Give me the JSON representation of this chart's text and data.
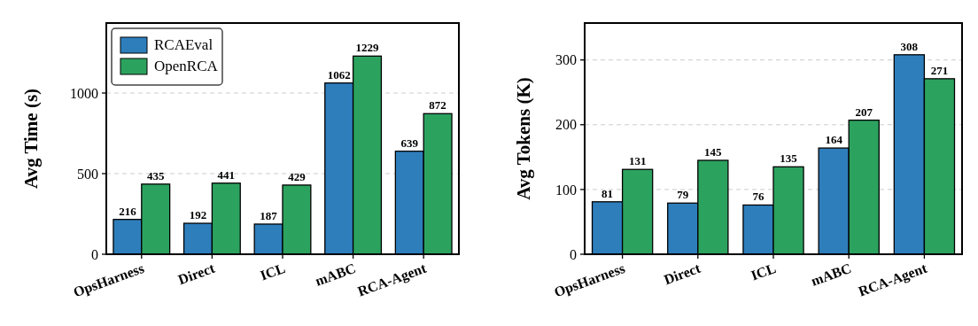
{
  "chart_data": [
    {
      "type": "bar",
      "ylabel": "Avg Time (s)",
      "categories": [
        "OpsHarness",
        "Direct",
        "ICL",
        "mABC",
        "RCA-Agent"
      ],
      "series": [
        {
          "name": "RCAEval",
          "color": "#2e7ebc",
          "values": [
            216,
            192,
            187,
            1062,
            639
          ]
        },
        {
          "name": "OpenRCA",
          "color": "#2ca25f",
          "values": [
            435,
            441,
            429,
            1229,
            872
          ]
        }
      ],
      "ylim": [
        0,
        1434
      ],
      "yticks": [
        0,
        500,
        1000
      ],
      "grid": "y",
      "legend": "top left",
      "data_labels": true
    },
    {
      "type": "bar",
      "ylabel": "Avg Tokens (K)",
      "categories": [
        "OpsHarness",
        "Direct",
        "ICL",
        "mABC",
        "RCA-Agent"
      ],
      "series": [
        {
          "color": "#2e7ebc",
          "values": [
            81,
            79,
            76,
            164,
            308
          ]
        },
        {
          "color": "#2ca25f",
          "values": [
            131,
            145,
            135,
            207,
            271
          ]
        }
      ],
      "ylim": [
        0,
        357
      ],
      "yticks": [
        0,
        100,
        200,
        300
      ],
      "grid": "y",
      "data_labels": true
    }
  ]
}
